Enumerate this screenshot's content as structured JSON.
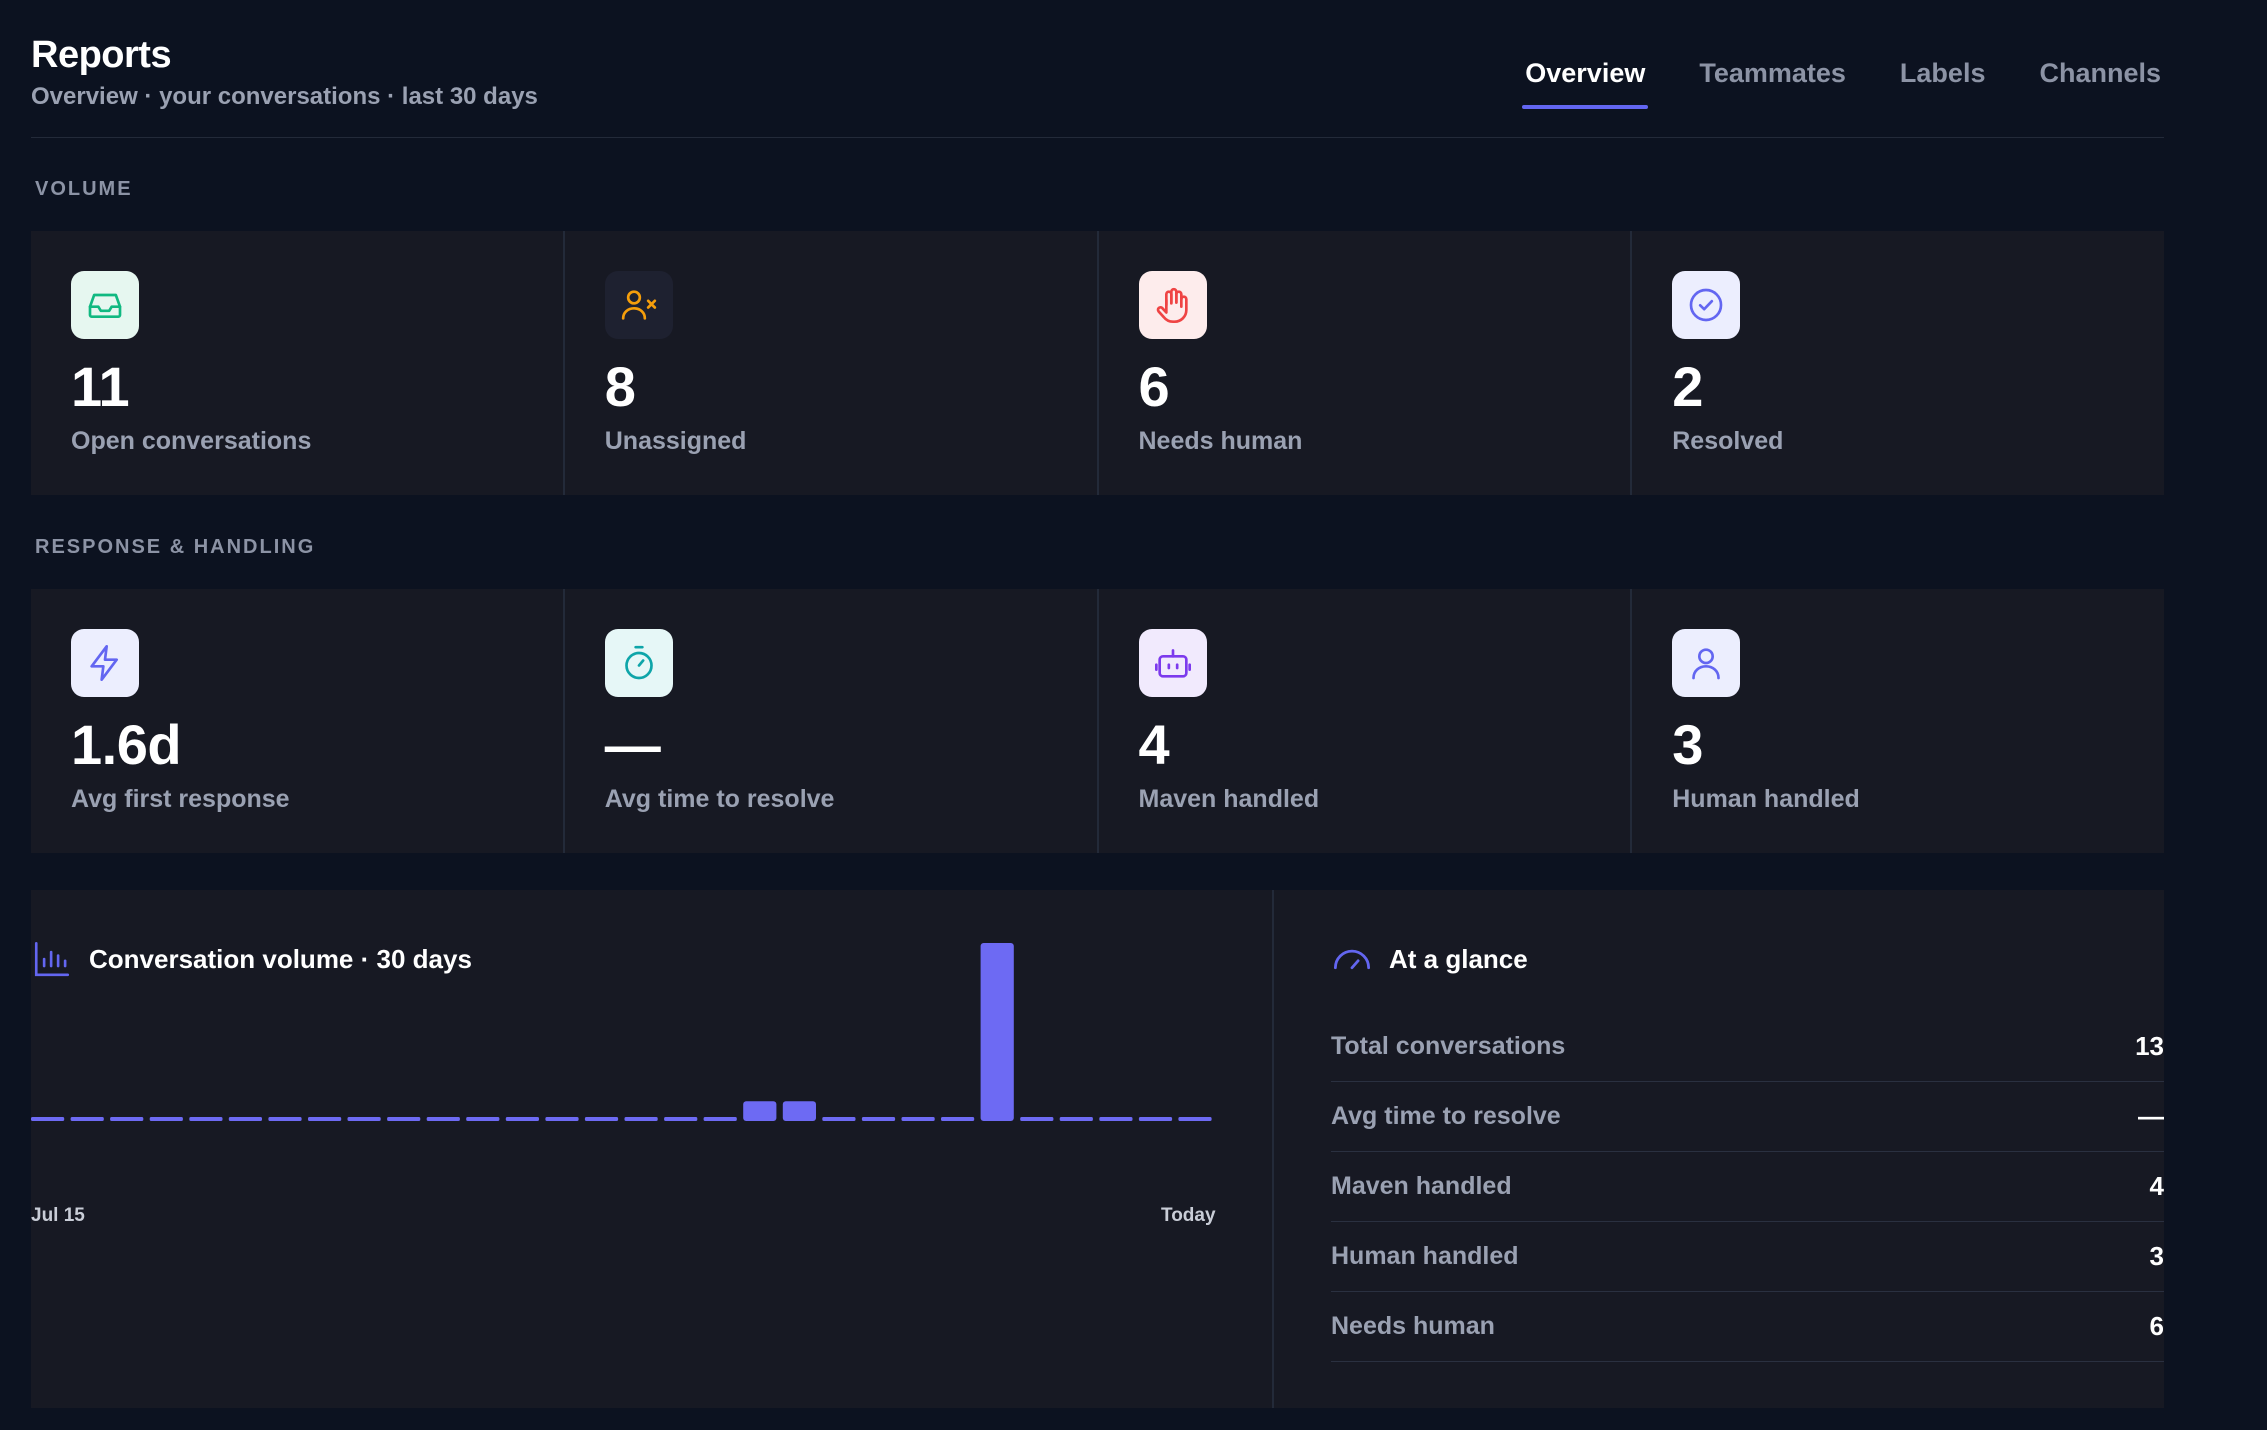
{
  "header": {
    "title": "Reports",
    "subtitle": "Overview · your conversations · last 30 days",
    "tabs": [
      {
        "label": "Overview",
        "active": true
      },
      {
        "label": "Teammates",
        "active": false
      },
      {
        "label": "Labels",
        "active": false
      },
      {
        "label": "Channels",
        "active": false
      }
    ]
  },
  "volume": {
    "section_label": "VOLUME",
    "cards": [
      {
        "icon": "inbox-icon",
        "value": "11",
        "label": "Open conversations",
        "icon_color": "#10b981",
        "icon_bg": "#e6f7f0"
      },
      {
        "icon": "user-x-icon",
        "value": "8",
        "label": "Unassigned",
        "icon_color": "#f59e0b",
        "icon_bg": "#1e2130"
      },
      {
        "icon": "hand-icon",
        "value": "6",
        "label": "Needs human",
        "icon_color": "#ef4444",
        "icon_bg": "#fdecec"
      },
      {
        "icon": "check-circle-icon",
        "value": "2",
        "label": "Resolved",
        "icon_color": "#6366f1",
        "icon_bg": "#eceefe"
      }
    ]
  },
  "response": {
    "section_label": "RESPONSE & HANDLING",
    "cards": [
      {
        "icon": "bolt-icon",
        "value": "1.6d",
        "label": "Avg first response",
        "icon_color": "#6366f1",
        "icon_bg": "#eceefe"
      },
      {
        "icon": "stopwatch-icon",
        "value": "—",
        "label": "Avg time to resolve",
        "icon_color": "#0ea5a9",
        "icon_bg": "#e6f7f7"
      },
      {
        "icon": "bot-icon",
        "value": "4",
        "label": "Maven handled",
        "icon_color": "#7c3aed",
        "icon_bg": "#f1eafd"
      },
      {
        "icon": "user-icon",
        "value": "3",
        "label": "Human handled",
        "icon_color": "#6366f1",
        "icon_bg": "#eceefe"
      }
    ]
  },
  "chart_panel": {
    "title": "Conversation volume · 30 days",
    "icon": "bar-chart-icon"
  },
  "chart_data": {
    "type": "bar",
    "tick_labels": [
      "Jul 15",
      "Today"
    ],
    "values": [
      0,
      0,
      0,
      0,
      0,
      0,
      0,
      0,
      0,
      0,
      0,
      0,
      0,
      0,
      0,
      0,
      0,
      0,
      1,
      1,
      0,
      0,
      0,
      0,
      9,
      0,
      0,
      0,
      0,
      0
    ],
    "ylim": [
      0,
      9
    ],
    "bar_color": "#6d6af3",
    "grid": false
  },
  "glance": {
    "title": "At a glance",
    "icon": "gauge-icon",
    "rows": [
      {
        "label": "Total conversations",
        "value": "13"
      },
      {
        "label": "Avg time to resolve",
        "value": "—"
      },
      {
        "label": "Maven handled",
        "value": "4"
      },
      {
        "label": "Human handled",
        "value": "3"
      },
      {
        "label": "Needs human",
        "value": "6"
      }
    ]
  }
}
